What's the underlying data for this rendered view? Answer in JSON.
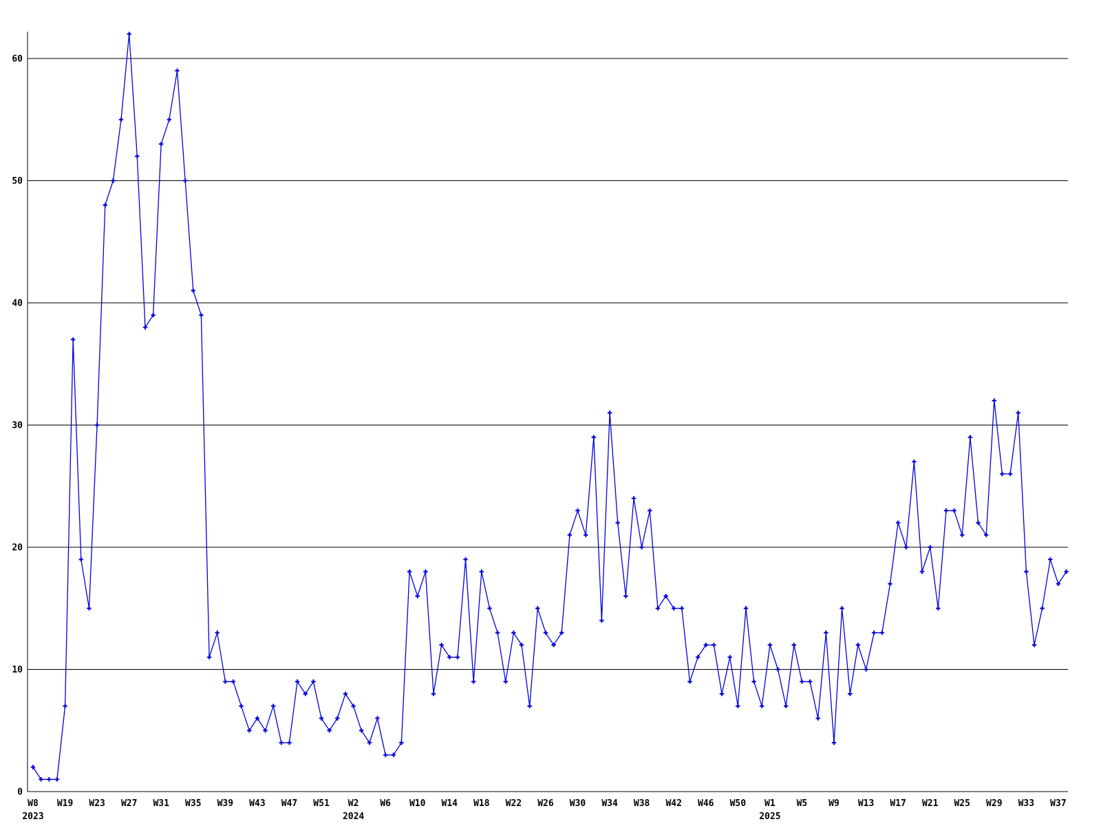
{
  "chart_data": {
    "type": "line",
    "title": "",
    "xlabel": "",
    "ylabel": "",
    "grid": true,
    "legend": "none",
    "background_color": "#ffffff",
    "line_color": "#0000dd",
    "grid_color": "#000000",
    "text_color": "#000000",
    "y_ticks": [
      0,
      10,
      20,
      30,
      40,
      50,
      60
    ],
    "ylim": [
      0,
      63
    ],
    "tick_every": 4,
    "x_tick_labels": [
      "W8",
      "W19",
      "W23",
      "W27",
      "W31",
      "W35",
      "W39",
      "W43",
      "W47",
      "W51",
      "W2",
      "W6",
      "W10",
      "W14",
      "W18",
      "W22",
      "W26",
      "W30",
      "W34",
      "W38",
      "W42",
      "W46",
      "W50",
      "W1",
      "W5",
      "W9",
      "W13",
      "W17",
      "W21",
      "W25",
      "W29",
      "W33",
      "W37"
    ],
    "year_labels": [
      {
        "text": "2023",
        "at_tick": 0
      },
      {
        "text": "2024",
        "at_tick": 10
      },
      {
        "text": "2025",
        "at_tick": 23
      }
    ],
    "values": [
      2,
      1,
      1,
      1,
      7,
      37,
      19,
      15,
      30,
      48,
      50,
      55,
      62,
      52,
      38,
      39,
      53,
      55,
      59,
      50,
      41,
      39,
      11,
      13,
      9,
      9,
      7,
      5,
      6,
      5,
      7,
      4,
      4,
      9,
      8,
      9,
      6,
      5,
      6,
      8,
      7,
      5,
      4,
      6,
      3,
      3,
      4,
      18,
      16,
      18,
      8,
      12,
      11,
      11,
      19,
      9,
      18,
      15,
      13,
      9,
      13,
      12,
      7,
      15,
      13,
      12,
      13,
      21,
      23,
      21,
      29,
      14,
      31,
      22,
      16,
      24,
      20,
      23,
      15,
      16,
      15,
      15,
      9,
      11,
      12,
      12,
      8,
      11,
      7,
      15,
      9,
      7,
      12,
      10,
      7,
      12,
      9,
      9,
      6,
      13,
      4,
      15,
      8,
      12,
      10,
      13,
      13,
      17,
      22,
      20,
      27,
      18,
      20,
      15,
      23,
      23,
      21,
      29,
      22,
      21,
      32,
      26,
      26,
      31,
      18,
      12,
      15,
      19,
      17,
      18
    ]
  }
}
